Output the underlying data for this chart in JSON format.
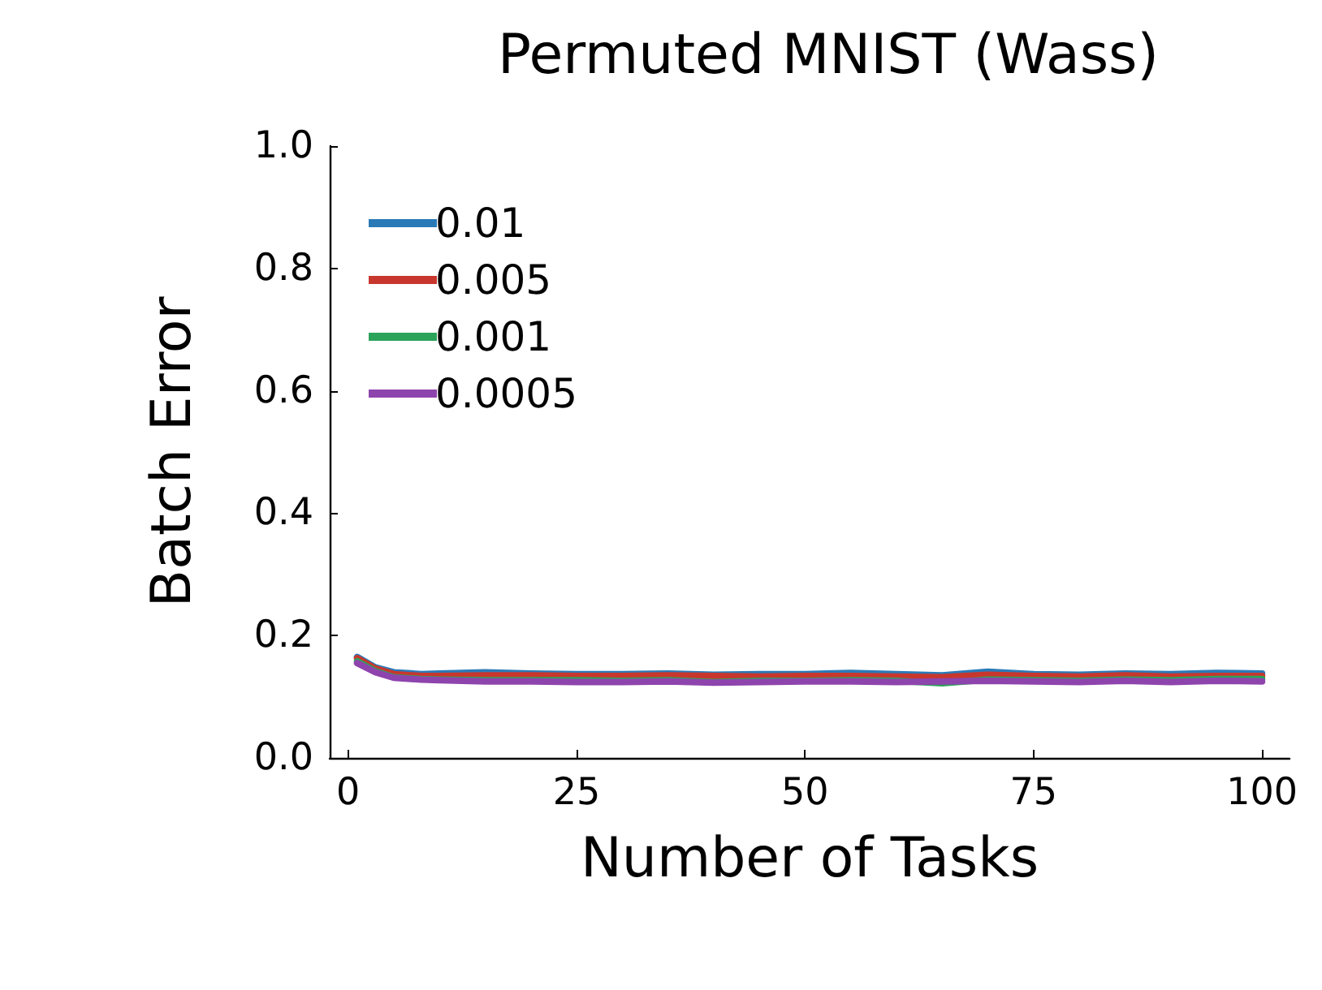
{
  "chart_data": {
    "type": "line",
    "title": "Permuted MNIST (Wass)",
    "xlabel": "Number of Tasks",
    "ylabel": "Batch Error",
    "x": [
      1,
      3,
      5,
      8,
      10,
      15,
      20,
      25,
      30,
      35,
      40,
      45,
      50,
      55,
      60,
      65,
      70,
      75,
      80,
      85,
      90,
      95,
      100
    ],
    "series": [
      {
        "name": "0.01",
        "color": "#2a7ab8",
        "values": [
          0.165,
          0.148,
          0.14,
          0.137,
          0.138,
          0.14,
          0.138,
          0.137,
          0.137,
          0.138,
          0.136,
          0.137,
          0.137,
          0.139,
          0.137,
          0.135,
          0.141,
          0.137,
          0.136,
          0.138,
          0.137,
          0.139,
          0.138
        ]
      },
      {
        "name": "0.005",
        "color": "#c8372d",
        "values": [
          0.163,
          0.146,
          0.137,
          0.134,
          0.134,
          0.135,
          0.135,
          0.134,
          0.134,
          0.135,
          0.134,
          0.133,
          0.134,
          0.134,
          0.133,
          0.132,
          0.136,
          0.134,
          0.133,
          0.135,
          0.133,
          0.134,
          0.134
        ]
      },
      {
        "name": "0.001",
        "color": "#2ba35a",
        "values": [
          0.158,
          0.142,
          0.132,
          0.129,
          0.128,
          0.127,
          0.127,
          0.127,
          0.126,
          0.127,
          0.124,
          0.126,
          0.126,
          0.127,
          0.126,
          0.122,
          0.128,
          0.127,
          0.126,
          0.128,
          0.127,
          0.129,
          0.129
        ]
      },
      {
        "name": "0.0005",
        "color": "#8e44ad",
        "values": [
          0.155,
          0.14,
          0.131,
          0.128,
          0.127,
          0.125,
          0.125,
          0.124,
          0.124,
          0.125,
          0.123,
          0.124,
          0.125,
          0.125,
          0.124,
          0.125,
          0.126,
          0.125,
          0.124,
          0.126,
          0.124,
          0.126,
          0.125
        ]
      }
    ],
    "xlim": [
      -2,
      103
    ],
    "xticks": [
      0,
      25,
      50,
      75,
      100
    ],
    "ylim": [
      0,
      1
    ],
    "yticks": [
      {
        "value": 0,
        "label": "0.0"
      },
      0.2,
      0.4,
      0.6,
      0.8,
      {
        "value": 1,
        "label": "1.0"
      }
    ],
    "grid": false,
    "legend": "top left",
    "marker": "none",
    "line_style": "solid"
  }
}
